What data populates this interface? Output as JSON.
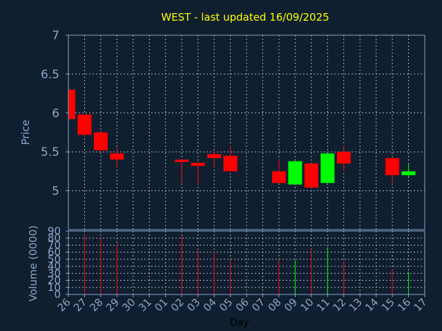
{
  "chart_data": {
    "type": "candlestick",
    "title": "WEST - last updated 16/09/2025",
    "xlabel": "Day",
    "price_panel": {
      "ylabel": "Price",
      "ylim": [
        4.5,
        7
      ],
      "yticks": [
        "5",
        "5.5",
        "6",
        "6.5",
        "7"
      ],
      "ytick_values": [
        5,
        5.5,
        6,
        6.5,
        7
      ]
    },
    "volume_panel": {
      "ylabel": "Volume (0000)",
      "ylim": [
        0,
        90
      ],
      "yticks": [
        "0",
        "10",
        "20",
        "30",
        "40",
        "50",
        "60",
        "70",
        "80",
        "90"
      ],
      "ytick_values": [
        0,
        10,
        20,
        30,
        40,
        50,
        60,
        70,
        80,
        90
      ]
    },
    "x_ticks": [
      "26",
      "27",
      "28",
      "29",
      "30",
      "31",
      "01",
      "02",
      "03",
      "04",
      "05",
      "06",
      "07",
      "08",
      "09",
      "10",
      "11",
      "12",
      "13",
      "14",
      "15",
      "16",
      "17"
    ],
    "grid": true,
    "colors": {
      "background": "#0f1f30",
      "axis": "#8aa6c8",
      "grid": "#a9b7c6",
      "title": "#ffff00",
      "tick_label": "#8aa6c8",
      "xlabel": "#000000",
      "up": "#00ff00",
      "down": "#ff0000"
    },
    "candles": [
      {
        "day": "26",
        "open": 6.3,
        "high": 6.3,
        "low": 5.92,
        "close": 5.92,
        "volume": 0
      },
      {
        "day": "27",
        "open": 5.98,
        "high": 5.98,
        "low": 5.7,
        "close": 5.72,
        "volume": 84
      },
      {
        "day": "28",
        "open": 5.75,
        "high": 5.75,
        "low": 5.5,
        "close": 5.52,
        "volume": 81
      },
      {
        "day": "29",
        "open": 5.48,
        "high": 5.55,
        "low": 5.3,
        "close": 5.4,
        "volume": 72
      },
      {
        "day": "02",
        "open": 5.4,
        "high": 5.4,
        "low": 5.1,
        "close": 5.37,
        "volume": 83
      },
      {
        "day": "03",
        "open": 5.36,
        "high": 5.36,
        "low": 5.08,
        "close": 5.32,
        "volume": 63
      },
      {
        "day": "04",
        "open": 5.47,
        "high": 5.52,
        "low": 5.3,
        "close": 5.42,
        "volume": 60
      },
      {
        "day": "05",
        "open": 5.45,
        "high": 5.58,
        "low": 5.25,
        "close": 5.25,
        "volume": 50
      },
      {
        "day": "08",
        "open": 5.25,
        "high": 5.4,
        "low": 5.1,
        "close": 5.1,
        "volume": 50
      },
      {
        "day": "09",
        "open": 5.08,
        "high": 5.38,
        "low": 5.08,
        "close": 5.38,
        "volume": 48
      },
      {
        "day": "10",
        "open": 5.35,
        "high": 5.35,
        "low": 5.04,
        "close": 5.04,
        "volume": 65
      },
      {
        "day": "11",
        "open": 5.1,
        "high": 5.48,
        "low": 5.1,
        "close": 5.48,
        "volume": 67
      },
      {
        "day": "12",
        "open": 5.5,
        "high": 5.58,
        "low": 5.25,
        "close": 5.35,
        "volume": 47
      },
      {
        "day": "15",
        "open": 5.42,
        "high": 5.42,
        "low": 5.1,
        "close": 5.2,
        "volume": 36
      },
      {
        "day": "16",
        "open": 5.2,
        "high": 5.35,
        "low": 5.18,
        "close": 5.25,
        "volume": 32
      }
    ]
  }
}
